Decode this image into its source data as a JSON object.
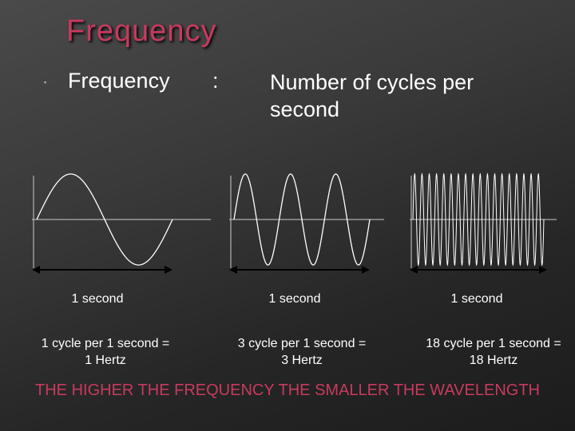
{
  "slide": {
    "title": "Frequency",
    "definition": {
      "term": "Frequency",
      "colon": ":",
      "text": "Number of cycles per second"
    }
  },
  "panels": [
    {
      "cycles": 1,
      "duration_label": "1 second",
      "result_line1": "1 cycle per 1 second =",
      "result_line2": "1 Hertz"
    },
    {
      "cycles": 3,
      "duration_label": "1 second",
      "result_line1": "3 cycle per 1 second =",
      "result_line2": "3 Hertz"
    },
    {
      "cycles": 18,
      "duration_label": "1 second",
      "result_line1": "18 cycle per 1 second =",
      "result_line2": "18 Hertz"
    }
  ],
  "conclusion": "THE HIGHER THE FREQUENCY THE SMALLER THE WAVELENGTH",
  "colors": {
    "title": "#c73a5e",
    "text": "#ffffff",
    "wave": "#ffffff",
    "axis": "#cccccc"
  }
}
